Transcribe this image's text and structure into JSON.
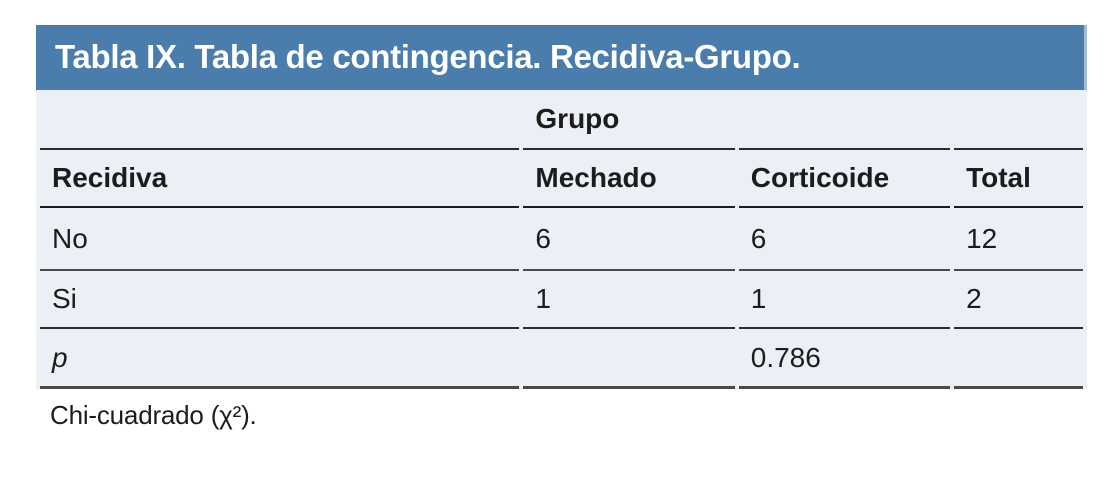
{
  "document": {
    "kind": "contingency-table",
    "title": "Tabla IX. Tabla de contingencia. Recidiva-Grupo.",
    "footnote": "Chi-cuadrado (χ²)."
  },
  "table": {
    "group_header": "Grupo",
    "columns": [
      "Recidiva",
      "Mechado",
      "Corticoide",
      "Total"
    ],
    "body_rows": [
      {
        "cells": [
          "No",
          "6",
          "6",
          "12"
        ]
      },
      {
        "cells": [
          "Si",
          "1",
          "1",
          "2"
        ]
      }
    ],
    "p_row": {
      "label": "p",
      "value": "0.786"
    }
  },
  "colors": {
    "title_bar_blue": "#4a7dab",
    "title_bar_edge": "#a2bfd9",
    "body_background": "#eceff5",
    "rule_dark": "#1d1d1d",
    "rule_gray": "#4a4a4a",
    "text": "#1c1c1c",
    "title_text": "#ffffff"
  }
}
